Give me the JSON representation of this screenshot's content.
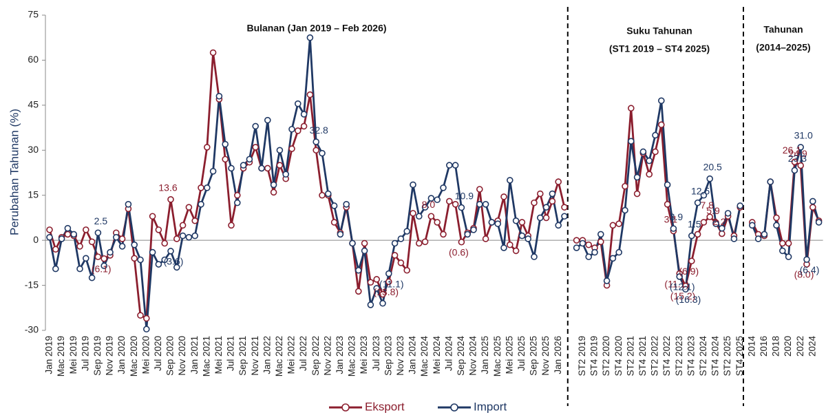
{
  "chart_data": {
    "type": "line",
    "y_label": "Perubahan Tahunan (%)",
    "annotations": [
      "Bulanan  (Jan 2019 – Feb 2026)",
      "Suku Tahunan",
      "(ST1 2019 – ST4 2025)",
      "Tahunan",
      "(2014–2025)"
    ],
    "ylim": [
      -30,
      75
    ],
    "yticks": [
      -30,
      -15,
      0,
      15,
      30,
      45,
      60,
      75
    ],
    "legend": "bottom",
    "categories": [
      "Jan 2019",
      null,
      "Mac 2019",
      null,
      "Mei 2019",
      null,
      "Jul 2019",
      null,
      "Sep 2019",
      null,
      "Nov 2019",
      null,
      "Jan 2020",
      null,
      "Mac 2020",
      null,
      "Mei 2020",
      null,
      "Jul 2020",
      null,
      "Sep 2020",
      null,
      "Nov 2020",
      null,
      "Jan 2021",
      null,
      "Mac 2021",
      null,
      "Mei 2021",
      null,
      "Jul 2021",
      null,
      "Sep 2021",
      null,
      "Nov 2021",
      null,
      "Jan 2022",
      null,
      "Mac 2022",
      null,
      "Mei 2022",
      null,
      "Jul 2022",
      null,
      "Sep 2022",
      null,
      "Nov 2022",
      null,
      "Jan 2023",
      null,
      "Mac 2023",
      null,
      "Mei 2023",
      null,
      "Jul 2023",
      null,
      "Sep 2023",
      null,
      "Nov 2023",
      null,
      "Jan 2024",
      null,
      "Mac 2024",
      null,
      "Mei 2024",
      null,
      "Jul 2024",
      null,
      "Sep 2024",
      null,
      "Nov 2024",
      null,
      "Jan 2025",
      null,
      "Mac 2025",
      null,
      "Mei 2025",
      null,
      "Jul 2025",
      null,
      "Sep 2025",
      null,
      "Nov 2025",
      null,
      "Jan 2026",
      null,
      null,
      null,
      "ST2 2019",
      null,
      "ST4 2019",
      null,
      "ST2 2020",
      null,
      "ST4 2020",
      null,
      "ST2 2021",
      null,
      "ST4 2021",
      null,
      "ST2 2022",
      null,
      "ST4 2022",
      null,
      "ST2 2023",
      null,
      "ST4 2023",
      null,
      "ST2 2024",
      null,
      "ST4 2024",
      null,
      "ST2 2025",
      null,
      "ST4 2025",
      null,
      "2014",
      null,
      "2016",
      null,
      "2018",
      null,
      "2020",
      null,
      "2022",
      null,
      "2024",
      null
    ],
    "series": [
      {
        "name": "Eksport",
        "color": "#8b1e2e",
        "values": [
          3.5,
          -3,
          1,
          2,
          1.5,
          -2,
          3.5,
          -0.5,
          -5.5,
          -6.1,
          -5,
          2.5,
          0.5,
          10.5,
          -6,
          -25,
          -26,
          8,
          3.5,
          -1,
          13.6,
          0.5,
          5,
          11,
          6.5,
          17.5,
          31,
          62.5,
          47,
          27,
          5,
          15,
          24,
          26,
          31,
          24,
          24,
          16,
          25,
          20.5,
          30.5,
          36.5,
          38,
          48.5,
          30,
          15,
          15,
          6,
          2.5,
          11,
          -1,
          -17,
          -1,
          -14,
          -13,
          -18,
          -13.8,
          -5,
          -7.5,
          -10,
          9,
          -1,
          -0.5,
          8.0,
          6,
          2,
          13,
          12,
          -0.6,
          2.5,
          4,
          17,
          0.5,
          6,
          6.5,
          14.5,
          -1.5,
          -3.5,
          6,
          1.5,
          12.5,
          15.5,
          7.5,
          13,
          19.5,
          11,
          null,
          0,
          0,
          -1.5,
          -2.5,
          -0.5,
          -15,
          5,
          5.5,
          18,
          44,
          15.5,
          29,
          22,
          29.5,
          38.5,
          12,
          3.1,
          -11.1,
          -15.2,
          -6.9,
          2,
          6,
          7.8,
          5.9,
          2.2,
          8,
          1.5,
          11,
          null,
          6,
          2,
          1.5,
          19.5,
          7.5,
          -1,
          -1,
          26.1,
          24.9,
          -8.0,
          11,
          6.5
        ],
        "value_labels": [
          null,
          null,
          null,
          null,
          null,
          null,
          null,
          null,
          null,
          "(6.1)",
          null,
          null,
          null,
          null,
          null,
          null,
          null,
          null,
          null,
          null,
          "13.6",
          null,
          null,
          null,
          null,
          null,
          null,
          null,
          null,
          null,
          null,
          null,
          null,
          null,
          null,
          null,
          null,
          null,
          null,
          null,
          null,
          null,
          null,
          null,
          null,
          null,
          null,
          null,
          null,
          null,
          null,
          null,
          null,
          null,
          null,
          null,
          "(13.8)",
          null,
          null,
          null,
          null,
          null,
          null,
          "8.0",
          null,
          null,
          null,
          null,
          "(0.6)",
          null,
          null,
          null,
          null,
          null,
          null,
          null,
          null,
          null,
          null,
          null,
          null,
          null,
          null,
          null,
          null,
          null,
          null,
          null,
          null,
          null,
          null,
          null,
          null,
          null,
          null,
          null,
          null,
          null,
          null,
          null,
          null,
          null,
          null,
          "3.1",
          "(11.1)",
          "(15.2)",
          "(6.9)",
          null,
          null,
          "7.8",
          "5.9",
          "2.2",
          null,
          null,
          null,
          null,
          null,
          null,
          null,
          null,
          null,
          null,
          null,
          "26.1",
          "24.9",
          "(8.0)",
          null,
          null
        ]
      },
      {
        "name": "Import",
        "color": "#1f3864",
        "values": [
          1,
          -9.5,
          0.5,
          4,
          2,
          -9.5,
          -6,
          -12.5,
          2.5,
          -8.5,
          -4,
          1,
          -2,
          12,
          -1.5,
          -6.5,
          -29.6,
          -4,
          -8,
          -6.5,
          -3.6,
          -9,
          1.5,
          1,
          1.5,
          12,
          17.5,
          23,
          48,
          32,
          24,
          12.5,
          25,
          27,
          38,
          24,
          40,
          18.5,
          30,
          22,
          37,
          45.5,
          42,
          67.5,
          32.8,
          29,
          15.5,
          11.5,
          2,
          12,
          -1,
          -10,
          -3.5,
          -21.5,
          -16,
          -21,
          -11.1,
          -1,
          0.5,
          3,
          18.5,
          8,
          11,
          14,
          13.5,
          17.5,
          25,
          25,
          10.9,
          2,
          3.5,
          12,
          12,
          6,
          5.5,
          -2.5,
          20,
          6.5,
          1.5,
          0.5,
          -5.5,
          7.5,
          11,
          15.5,
          5,
          8,
          null,
          -2.5,
          -1,
          -5.5,
          -4,
          2,
          -13.5,
          -6,
          -4,
          10,
          33,
          21,
          29.5,
          26.5,
          35,
          46.5,
          18.5,
          3.9,
          -12.1,
          -16.3,
          1.5,
          12.5,
          15,
          20.5,
          5.5,
          4,
          9,
          0.5,
          11.5,
          null,
          5,
          0.5,
          2,
          19.5,
          5,
          -3.5,
          -5.5,
          23.3,
          31.0,
          -6.4,
          13,
          6
        ],
        "value_labels": [
          null,
          null,
          null,
          null,
          null,
          null,
          null,
          null,
          "2.5",
          null,
          null,
          null,
          null,
          null,
          null,
          null,
          null,
          null,
          null,
          null,
          "(3.6)",
          null,
          null,
          null,
          null,
          null,
          null,
          null,
          null,
          null,
          null,
          null,
          null,
          null,
          null,
          null,
          null,
          null,
          null,
          null,
          null,
          null,
          null,
          null,
          "32.8",
          null,
          null,
          null,
          null,
          null,
          null,
          null,
          null,
          null,
          null,
          null,
          "(11.1)",
          null,
          null,
          null,
          null,
          null,
          null,
          null,
          null,
          null,
          null,
          null,
          "10.9",
          null,
          null,
          null,
          null,
          null,
          null,
          null,
          null,
          null,
          null,
          null,
          null,
          null,
          null,
          null,
          null,
          null,
          null,
          null,
          null,
          null,
          null,
          null,
          null,
          null,
          null,
          null,
          null,
          null,
          null,
          null,
          null,
          null,
          null,
          "3.9",
          "(12.1)",
          "(16.3)",
          "1.5",
          "12.5",
          null,
          "20.5",
          null,
          null,
          null,
          null,
          null,
          null,
          null,
          null,
          null,
          null,
          null,
          null,
          null,
          "23.3",
          "31.0",
          "(6.4)",
          null,
          null
        ]
      }
    ]
  }
}
